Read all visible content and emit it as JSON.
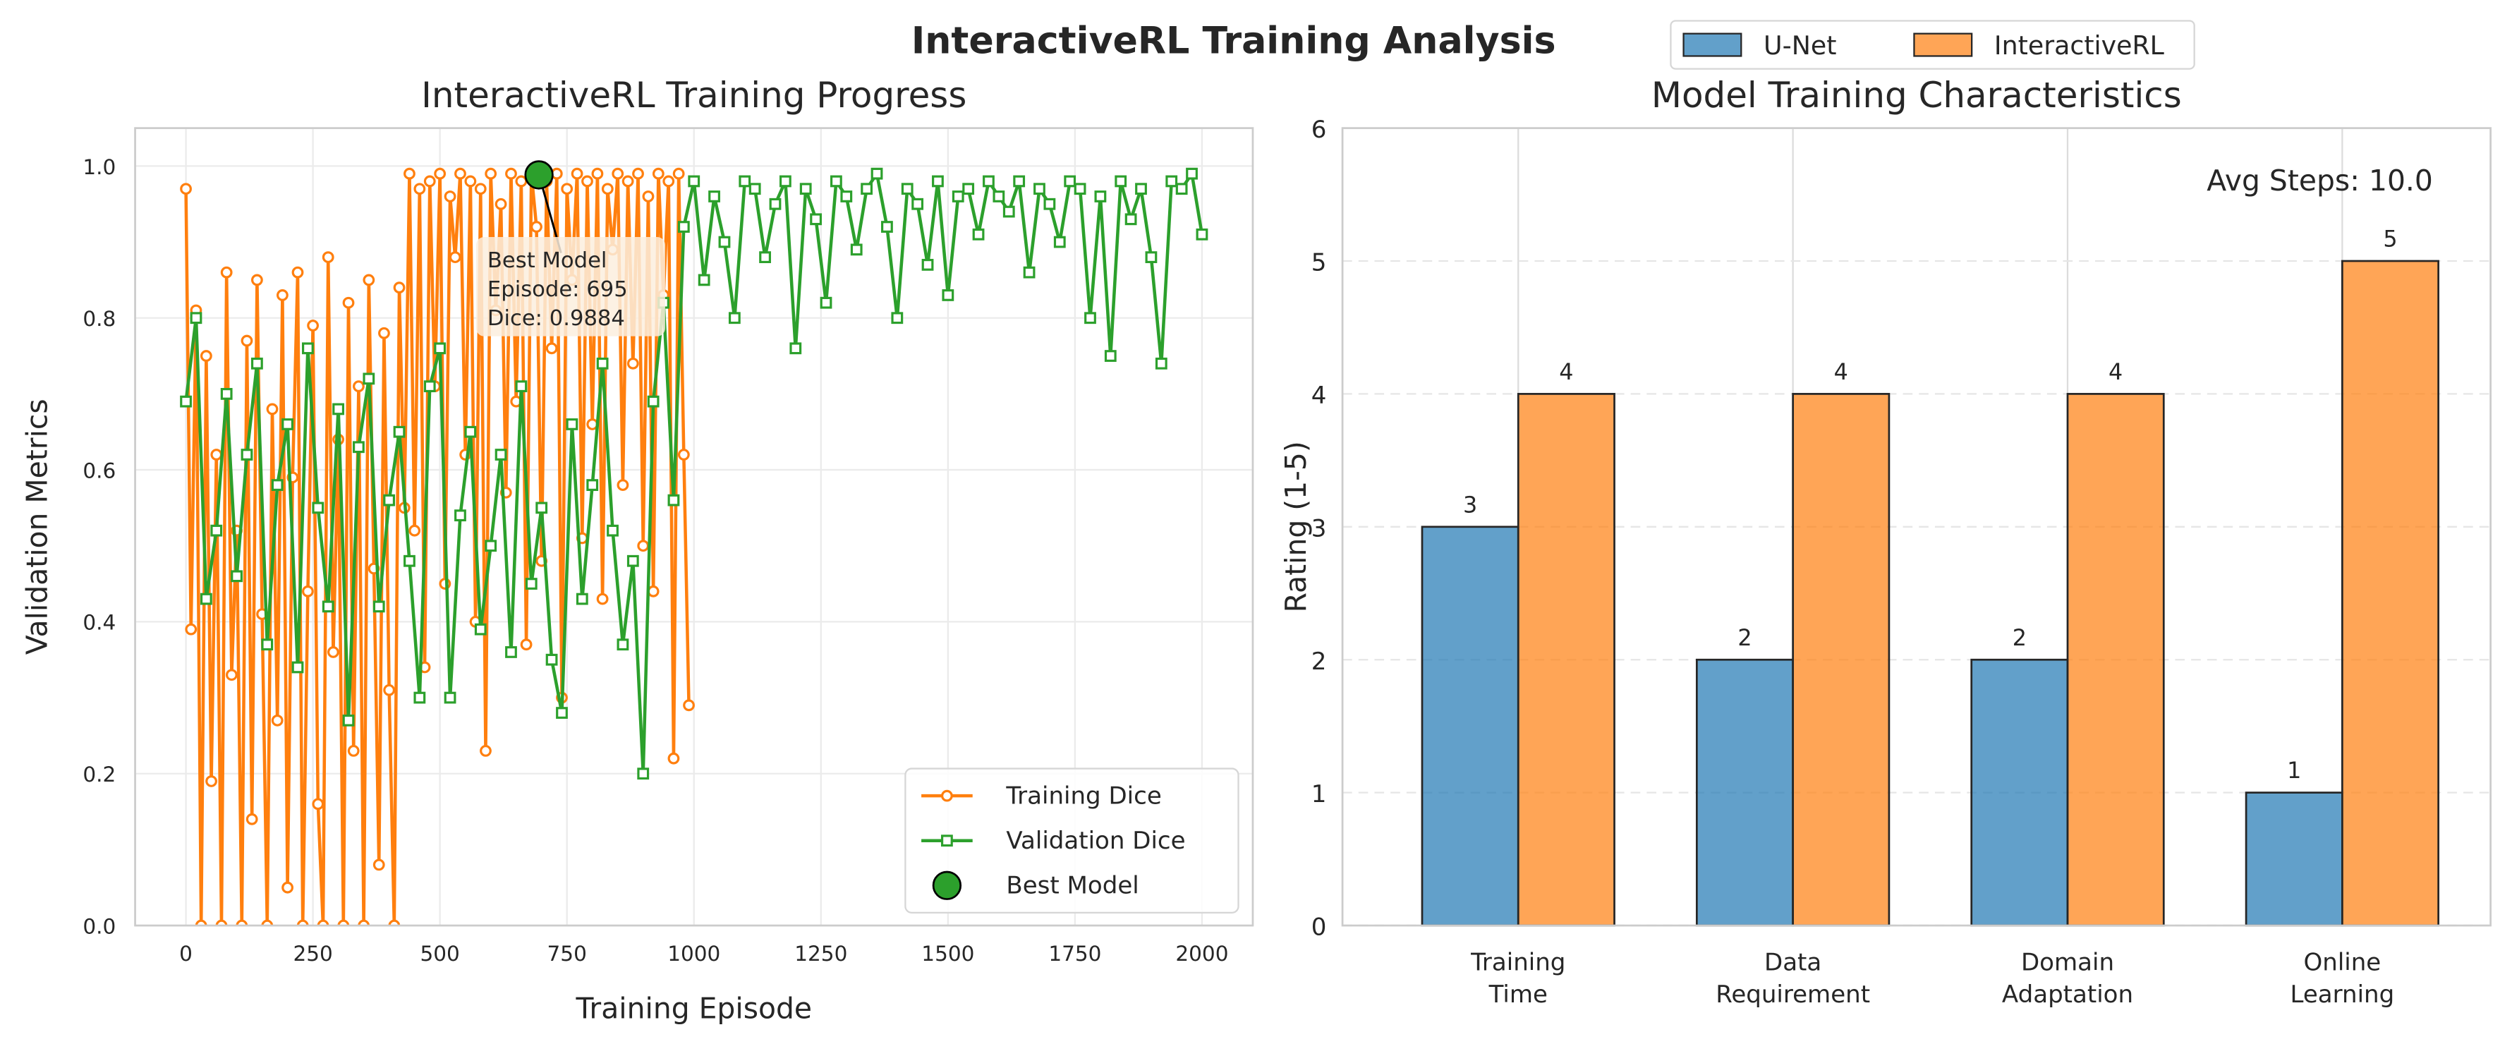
{
  "chart_data": [
    {
      "type": "line",
      "title": "InteractiveRL Training Progress",
      "x_label": "Training Episode",
      "y_label": "Validation Metrics",
      "xlim": [
        -100,
        2100
      ],
      "ylim": [
        0,
        1.05
      ],
      "xticks": [
        0,
        250,
        500,
        750,
        1000,
        1250,
        1500,
        1750,
        2000
      ],
      "yticks": [
        {
          "value": 0,
          "label": "0.0"
        },
        {
          "value": 0.2,
          "label": "0.2"
        },
        {
          "value": 0.4,
          "label": "0.4"
        },
        {
          "value": 0.6,
          "label": "0.6"
        },
        {
          "value": 0.8,
          "label": "0.8"
        },
        {
          "value": 1,
          "label": "1.0"
        }
      ],
      "grid": true,
      "legend": "lower right",
      "series": [
        {
          "name": "Training Dice",
          "color": "#ff7f0e",
          "marker": "circle",
          "x": [
            0,
            10,
            20,
            30,
            40,
            50,
            60,
            70,
            80,
            90,
            100,
            110,
            120,
            130,
            140,
            150,
            160,
            170,
            180,
            190,
            200,
            210,
            220,
            230,
            240,
            250,
            260,
            270,
            280,
            290,
            300,
            310,
            320,
            330,
            340,
            350,
            360,
            370,
            380,
            390,
            400,
            410,
            420,
            430,
            440,
            450,
            460,
            470,
            480,
            490,
            500,
            510,
            520,
            530,
            540,
            550,
            560,
            570,
            580,
            590,
            600,
            610,
            620,
            630,
            640,
            650,
            660,
            670,
            680,
            690,
            700,
            710,
            720,
            730,
            740,
            750,
            760,
            770,
            780,
            790,
            800,
            810,
            820,
            830,
            840,
            850,
            860,
            870,
            880,
            890,
            900,
            910,
            920,
            930,
            940,
            950,
            960,
            970,
            980,
            990
          ],
          "values": [
            0.97,
            0.39,
            0.81,
            0.0,
            0.75,
            0.19,
            0.62,
            0.0,
            0.86,
            0.33,
            0.52,
            0.0,
            0.77,
            0.14,
            0.85,
            0.41,
            0.0,
            0.68,
            0.27,
            0.83,
            0.05,
            0.59,
            0.86,
            0.0,
            0.44,
            0.79,
            0.16,
            0.0,
            0.88,
            0.36,
            0.64,
            0.0,
            0.82,
            0.23,
            0.71,
            0.0,
            0.85,
            0.47,
            0.08,
            0.78,
            0.31,
            0.0,
            0.84,
            0.55,
            0.99,
            0.52,
            0.97,
            0.34,
            0.98,
            0.71,
            0.99,
            0.45,
            0.96,
            0.88,
            0.99,
            0.62,
            0.98,
            0.4,
            0.97,
            0.23,
            0.99,
            0.81,
            0.95,
            0.57,
            0.99,
            0.69,
            0.98,
            0.37,
            0.99,
            0.92,
            0.48,
            0.98,
            0.76,
            0.99,
            0.3,
            0.97,
            0.85,
            0.99,
            0.51,
            0.98,
            0.66,
            0.99,
            0.43,
            0.97,
            0.89,
            0.99,
            0.58,
            0.98,
            0.74,
            0.99,
            0.5,
            0.96,
            0.44,
            0.99,
            0.83,
            0.98,
            0.22,
            0.99,
            0.62,
            0.29
          ]
        },
        {
          "name": "Validation Dice",
          "color": "#2ca02c",
          "marker": "square",
          "x": [
            0,
            20,
            40,
            60,
            80,
            100,
            120,
            140,
            160,
            180,
            200,
            220,
            240,
            260,
            280,
            300,
            320,
            340,
            360,
            380,
            400,
            420,
            440,
            460,
            480,
            500,
            520,
            540,
            560,
            580,
            600,
            620,
            640,
            660,
            680,
            700,
            720,
            740,
            760,
            780,
            800,
            820,
            840,
            860,
            880,
            900,
            920,
            940,
            960,
            980,
            1000,
            1020,
            1040,
            1060,
            1080,
            1100,
            1120,
            1140,
            1160,
            1180,
            1200,
            1220,
            1240,
            1260,
            1280,
            1300,
            1320,
            1340,
            1360,
            1380,
            1400,
            1420,
            1440,
            1460,
            1480,
            1500,
            1520,
            1540,
            1560,
            1580,
            1600,
            1620,
            1640,
            1660,
            1680,
            1700,
            1720,
            1740,
            1760,
            1780,
            1800,
            1820,
            1840,
            1860,
            1880,
            1900,
            1920,
            1940,
            1960,
            1980,
            2000
          ],
          "values": [
            0.69,
            0.8,
            0.43,
            0.52,
            0.7,
            0.46,
            0.62,
            0.74,
            0.37,
            0.58,
            0.66,
            0.34,
            0.76,
            0.55,
            0.42,
            0.68,
            0.27,
            0.63,
            0.72,
            0.42,
            0.56,
            0.65,
            0.48,
            0.3,
            0.71,
            0.76,
            0.3,
            0.54,
            0.65,
            0.39,
            0.5,
            0.62,
            0.36,
            0.71,
            0.45,
            0.55,
            0.35,
            0.28,
            0.66,
            0.43,
            0.58,
            0.74,
            0.52,
            0.37,
            0.48,
            0.2,
            0.69,
            0.82,
            0.56,
            0.92,
            0.98,
            0.85,
            0.96,
            0.9,
            0.8,
            0.98,
            0.97,
            0.88,
            0.95,
            0.98,
            0.76,
            0.97,
            0.93,
            0.82,
            0.98,
            0.96,
            0.89,
            0.97,
            0.99,
            0.92,
            0.8,
            0.97,
            0.95,
            0.87,
            0.98,
            0.83,
            0.96,
            0.97,
            0.91,
            0.98,
            0.96,
            0.94,
            0.98,
            0.86,
            0.97,
            0.95,
            0.9,
            0.98,
            0.97,
            0.8,
            0.96,
            0.75,
            0.98,
            0.93,
            0.97,
            0.88,
            0.74,
            0.98,
            0.97,
            0.99,
            0.91
          ]
        }
      ],
      "best_model": {
        "name": "Best Model",
        "x": 695,
        "y": 0.9884,
        "color": "#2ca02c"
      },
      "annotation": "Best Model\nEpisode: 695\nDice: 0.9884"
    },
    {
      "type": "bar",
      "suptitle": "InteractiveRL Training Analysis",
      "title": "Model Training Characteristics",
      "y_label": "Rating (1-5)",
      "categories": [
        "Training\nTime",
        "Data\nRequirement",
        "Domain\nAdaptation",
        "Online\nLearning"
      ],
      "ylim": [
        0,
        6
      ],
      "yticks": [
        0,
        1,
        2,
        3,
        4,
        5,
        6
      ],
      "grid": true,
      "legend": "upper center",
      "series": [
        {
          "name": "U-Net",
          "color": "#1f77b4",
          "values": [
            3,
            2,
            2,
            1
          ]
        },
        {
          "name": "InteractiveRL",
          "color": "#ff7f0e",
          "values": [
            4,
            4,
            4,
            5
          ]
        }
      ],
      "annotation": "Avg Steps: 10.0"
    }
  ]
}
